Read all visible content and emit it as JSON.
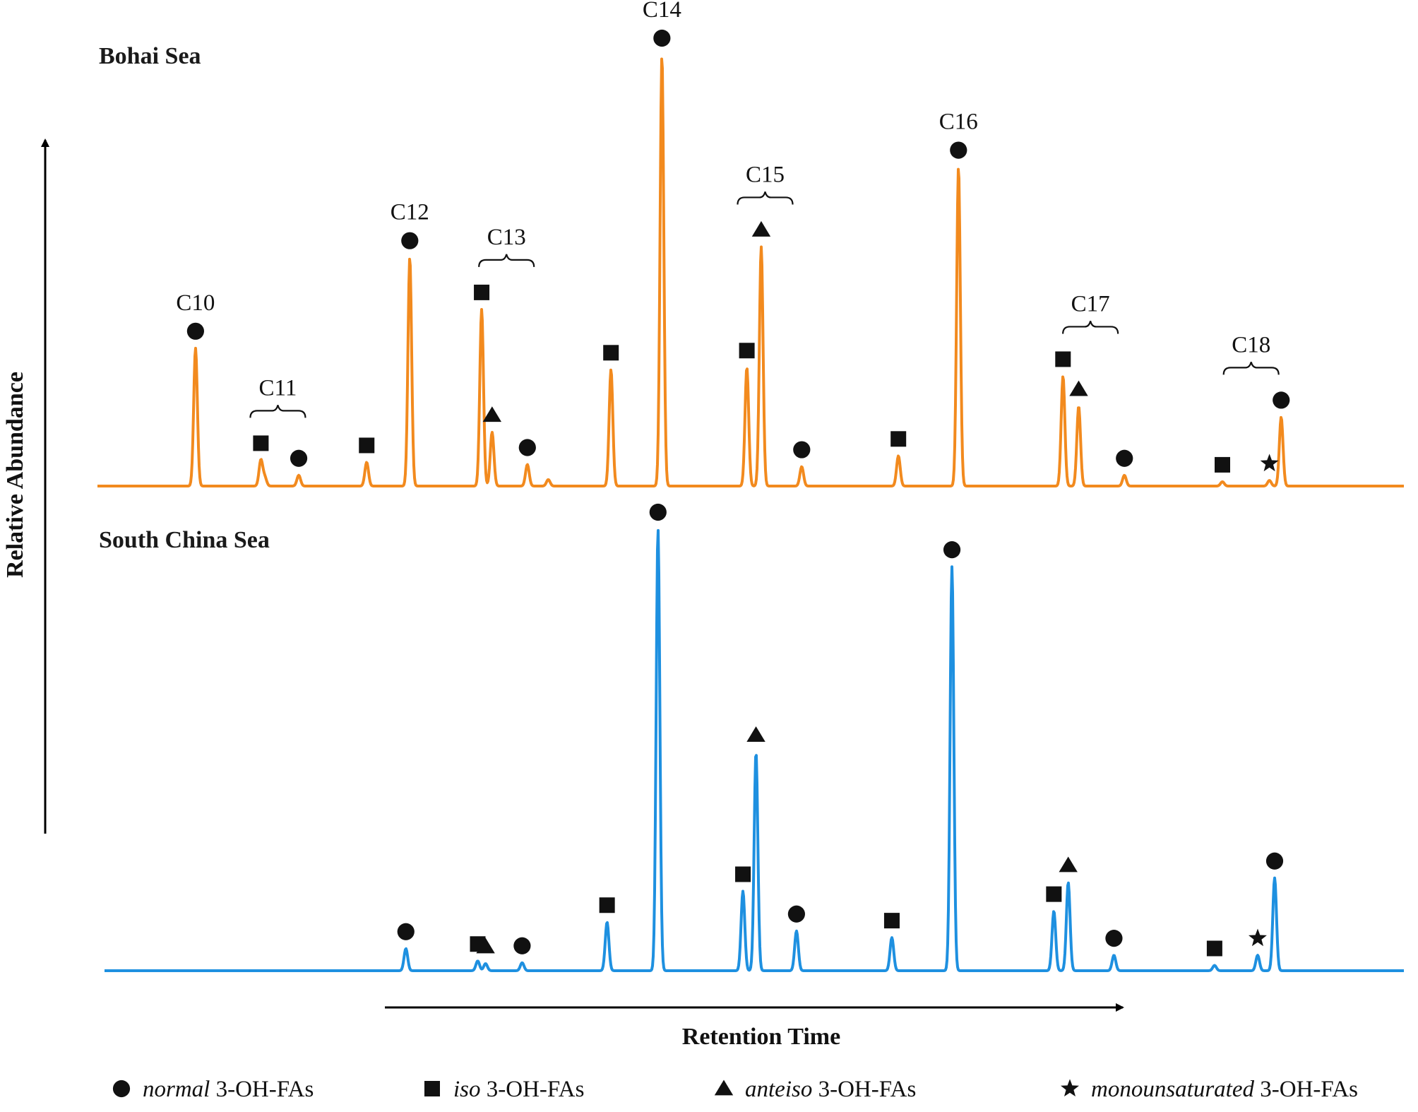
{
  "chart_data": {
    "type": "line",
    "title": "",
    "xlabel": "Retention Time",
    "ylabel": "Relative Abundance",
    "legend": {
      "placement": "bottom",
      "entries": [
        {
          "marker": "circle",
          "italic": "normal",
          "rest": " 3-OH-FAs",
          "class": "normal"
        },
        {
          "marker": "square",
          "italic": "iso",
          "rest": " 3-OH-FAs",
          "class": "iso"
        },
        {
          "marker": "triangle",
          "italic": "anteiso",
          "rest": " 3-OH-FAs",
          "class": "anteiso"
        },
        {
          "marker": "star",
          "italic": "monounsaturated",
          "rest": " 3-OH-FAs",
          "class": "monounsaturated"
        }
      ]
    },
    "series": [
      {
        "name": "Bohai Sea",
        "color": "#F28A1E",
        "peaks": [
          {
            "rt": 0.074,
            "height": 0.32,
            "marker": "circle",
            "label": "C10"
          },
          {
            "rt": 0.124,
            "height": 0.06,
            "marker": "square"
          },
          {
            "rt": 0.127,
            "height": 0.02
          },
          {
            "rt": 0.153,
            "height": 0.025,
            "marker": "circle"
          },
          {
            "rt": 0.205,
            "height": 0.055,
            "marker": "square"
          },
          {
            "rt": 0.238,
            "height": 0.53,
            "marker": "circle",
            "label": "C12"
          },
          {
            "rt": 0.293,
            "height": 0.41,
            "marker": "square"
          },
          {
            "rt": 0.301,
            "height": 0.125,
            "marker": "triangle"
          },
          {
            "rt": 0.328,
            "height": 0.05,
            "marker": "circle"
          },
          {
            "rt": 0.344,
            "height": 0.015
          },
          {
            "rt": 0.392,
            "height": 0.27,
            "marker": "square"
          },
          {
            "rt": 0.431,
            "height": 1.0,
            "marker": "circle",
            "label": "C14"
          },
          {
            "rt": 0.496,
            "height": 0.275,
            "marker": "square"
          },
          {
            "rt": 0.507,
            "height": 0.555,
            "marker": "triangle"
          },
          {
            "rt": 0.538,
            "height": 0.045,
            "marker": "circle"
          },
          {
            "rt": 0.612,
            "height": 0.07,
            "marker": "square"
          },
          {
            "rt": 0.658,
            "height": 0.74,
            "marker": "circle",
            "label": "C16"
          },
          {
            "rt": 0.738,
            "height": 0.255,
            "marker": "square"
          },
          {
            "rt": 0.75,
            "height": 0.185,
            "marker": "triangle"
          },
          {
            "rt": 0.785,
            "height": 0.025,
            "marker": "circle"
          },
          {
            "rt": 0.86,
            "height": 0.01,
            "marker": "square"
          },
          {
            "rt": 0.896,
            "height": 0.013,
            "marker": "star"
          },
          {
            "rt": 0.905,
            "height": 0.16,
            "marker": "circle"
          }
        ],
        "group_labels": [
          {
            "label": "C11",
            "rt": 0.137
          },
          {
            "label": "C13",
            "rt": 0.312
          },
          {
            "label": "C15",
            "rt": 0.51
          },
          {
            "label": "C17",
            "rt": 0.759
          },
          {
            "label": "C18",
            "rt": 0.882
          }
        ]
      },
      {
        "name": "South China Sea",
        "color": "#1E90E0",
        "peaks": [
          {
            "rt": 0.235,
            "height": 0.05,
            "marker": "circle"
          },
          {
            "rt": 0.29,
            "height": 0.022,
            "marker": "square"
          },
          {
            "rt": 0.296,
            "height": 0.016,
            "marker": "triangle"
          },
          {
            "rt": 0.324,
            "height": 0.018,
            "marker": "circle"
          },
          {
            "rt": 0.389,
            "height": 0.11,
            "marker": "square"
          },
          {
            "rt": 0.428,
            "height": 1.0,
            "marker": "circle"
          },
          {
            "rt": 0.493,
            "height": 0.18,
            "marker": "square"
          },
          {
            "rt": 0.503,
            "height": 0.495,
            "marker": "triangle"
          },
          {
            "rt": 0.534,
            "height": 0.09,
            "marker": "circle"
          },
          {
            "rt": 0.607,
            "height": 0.075,
            "marker": "square"
          },
          {
            "rt": 0.653,
            "height": 0.915,
            "marker": "circle"
          },
          {
            "rt": 0.731,
            "height": 0.135,
            "marker": "square"
          },
          {
            "rt": 0.742,
            "height": 0.2,
            "marker": "triangle"
          },
          {
            "rt": 0.777,
            "height": 0.035,
            "marker": "circle"
          },
          {
            "rt": 0.854,
            "height": 0.012,
            "marker": "square"
          },
          {
            "rt": 0.887,
            "height": 0.035,
            "marker": "star"
          },
          {
            "rt": 0.9,
            "height": 0.21,
            "marker": "circle"
          }
        ]
      }
    ]
  }
}
